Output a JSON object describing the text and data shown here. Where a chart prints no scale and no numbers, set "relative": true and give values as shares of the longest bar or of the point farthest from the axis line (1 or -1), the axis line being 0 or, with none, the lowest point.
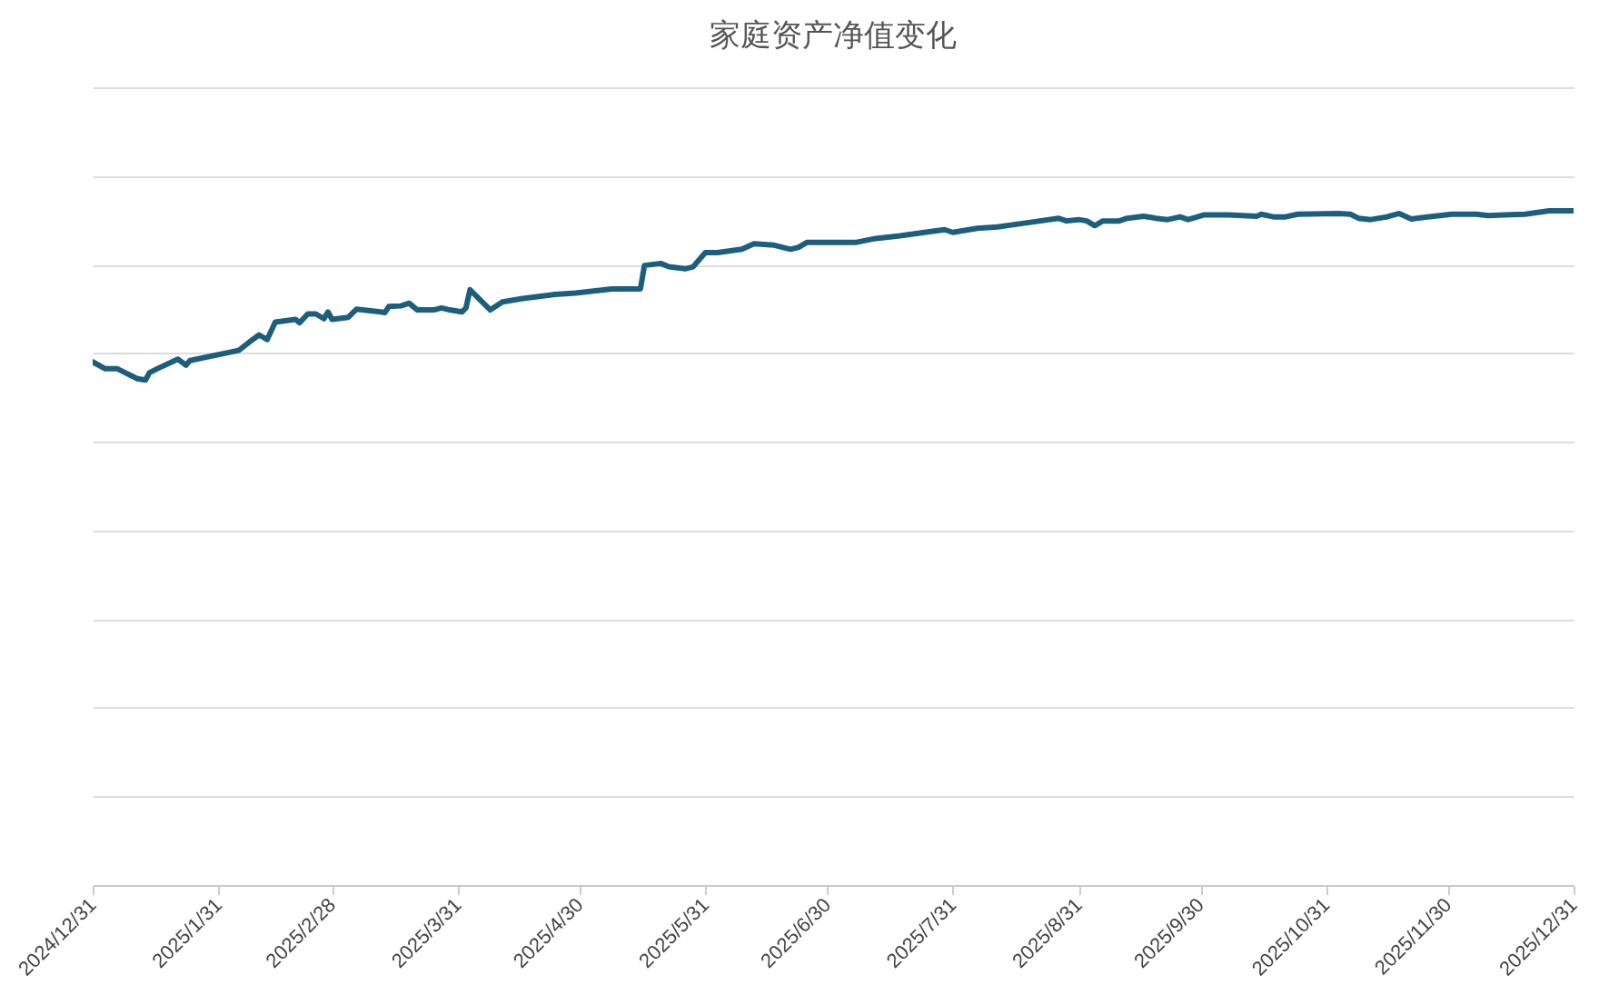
{
  "chart_data": {
    "type": "line",
    "title": "家庭资产净值变化",
    "relative": true,
    "grid": "y",
    "xlim": [
      "2024-12-31",
      "2025-12-31"
    ],
    "xticks": [
      {
        "value": "2024-12-31",
        "label": "2024/12/31"
      },
      {
        "value": "2025-01-31",
        "label": "2025/1/31"
      },
      {
        "value": "2025-02-28",
        "label": "2025/2/28"
      },
      {
        "value": "2025-03-31",
        "label": "2025/3/31"
      },
      {
        "value": "2025-04-30",
        "label": "2025/4/30"
      },
      {
        "value": "2025-05-31",
        "label": "2025/5/31"
      },
      {
        "value": "2025-06-30",
        "label": "2025/6/30"
      },
      {
        "value": "2025-07-31",
        "label": "2025/7/31"
      },
      {
        "value": "2025-08-31",
        "label": "2025/8/31"
      },
      {
        "value": "2025-09-30",
        "label": "2025/9/30"
      },
      {
        "value": "2025-10-31",
        "label": "2025/10/31"
      },
      {
        "value": "2025-11-30",
        "label": "2025/11/30"
      },
      {
        "value": "2025-12-31",
        "label": "2025/12/31"
      }
    ],
    "x": [
      "2024-12-31",
      "2025-01-03",
      "2025-01-06",
      "2025-01-08",
      "2025-01-11",
      "2025-01-13",
      "2025-01-14",
      "2025-01-16",
      "2025-01-21",
      "2025-01-23",
      "2025-01-24",
      "2025-02-05",
      "2025-02-08",
      "2025-02-10",
      "2025-02-12",
      "2025-02-14",
      "2025-02-19",
      "2025-02-20",
      "2025-02-22",
      "2025-02-24",
      "2025-02-26",
      "2025-02-27",
      "2025-02-28",
      "2025-03-04",
      "2025-03-06",
      "2025-03-12",
      "2025-03-13",
      "2025-03-14",
      "2025-03-17",
      "2025-03-19",
      "2025-03-21",
      "2025-03-25",
      "2025-03-27",
      "2025-03-29",
      "2025-04-01",
      "2025-04-02",
      "2025-04-03",
      "2025-04-08",
      "2025-04-11",
      "2025-04-16",
      "2025-04-24",
      "2025-04-29",
      "2025-05-08",
      "2025-05-15",
      "2025-05-16",
      "2025-05-20",
      "2025-05-22",
      "2025-05-26",
      "2025-05-28",
      "2025-05-29",
      "2025-05-31",
      "2025-06-03",
      "2025-06-09",
      "2025-06-12",
      "2025-06-17",
      "2025-06-21",
      "2025-06-23",
      "2025-06-25",
      "2025-07-07",
      "2025-07-12",
      "2025-07-18",
      "2025-07-24",
      "2025-07-29",
      "2025-07-31",
      "2025-08-06",
      "2025-08-11",
      "2025-08-18",
      "2025-08-26",
      "2025-08-28",
      "2025-08-31",
      "2025-09-02",
      "2025-09-04",
      "2025-09-06",
      "2025-09-10",
      "2025-09-12",
      "2025-09-16",
      "2025-09-19",
      "2025-09-22",
      "2025-09-25",
      "2025-09-27",
      "2025-10-01",
      "2025-10-07",
      "2025-10-14",
      "2025-10-15",
      "2025-10-18",
      "2025-10-21",
      "2025-10-24",
      "2025-11-03",
      "2025-11-06",
      "2025-11-08",
      "2025-11-11",
      "2025-11-15",
      "2025-11-18",
      "2025-11-21",
      "2025-11-25",
      "2025-12-01",
      "2025-12-07",
      "2025-12-10",
      "2025-12-14",
      "2025-12-19",
      "2025-12-25",
      "2025-12-31"
    ],
    "series": [
      {
        "color": "#1b5e7e",
        "values": [
          0.776,
          0.766,
          0.766,
          0.76,
          0.751,
          0.749,
          0.76,
          0.766,
          0.78,
          0.771,
          0.778,
          0.793,
          0.807,
          0.816,
          0.809,
          0.835,
          0.839,
          0.834,
          0.847,
          0.847,
          0.84,
          0.85,
          0.839,
          0.842,
          0.854,
          0.85,
          0.849,
          0.858,
          0.859,
          0.863,
          0.853,
          0.853,
          0.856,
          0.853,
          0.85,
          0.856,
          0.883,
          0.853,
          0.865,
          0.87,
          0.876,
          0.878,
          0.884,
          0.884,
          0.919,
          0.922,
          0.917,
          0.914,
          0.917,
          0.924,
          0.938,
          0.938,
          0.943,
          0.951,
          0.949,
          0.943,
          0.946,
          0.953,
          0.953,
          0.959,
          0.963,
          0.968,
          0.972,
          0.968,
          0.974,
          0.976,
          0.982,
          0.989,
          0.985,
          0.987,
          0.985,
          0.978,
          0.985,
          0.985,
          0.989,
          0.992,
          0.989,
          0.987,
          0.991,
          0.987,
          0.994,
          0.994,
          0.992,
          0.995,
          0.991,
          0.991,
          0.995,
          0.996,
          0.995,
          0.989,
          0.987,
          0.991,
          0.996,
          0.988,
          0.991,
          0.995,
          0.995,
          0.993,
          0.994,
          0.995,
          1,
          1
        ]
      }
    ]
  }
}
